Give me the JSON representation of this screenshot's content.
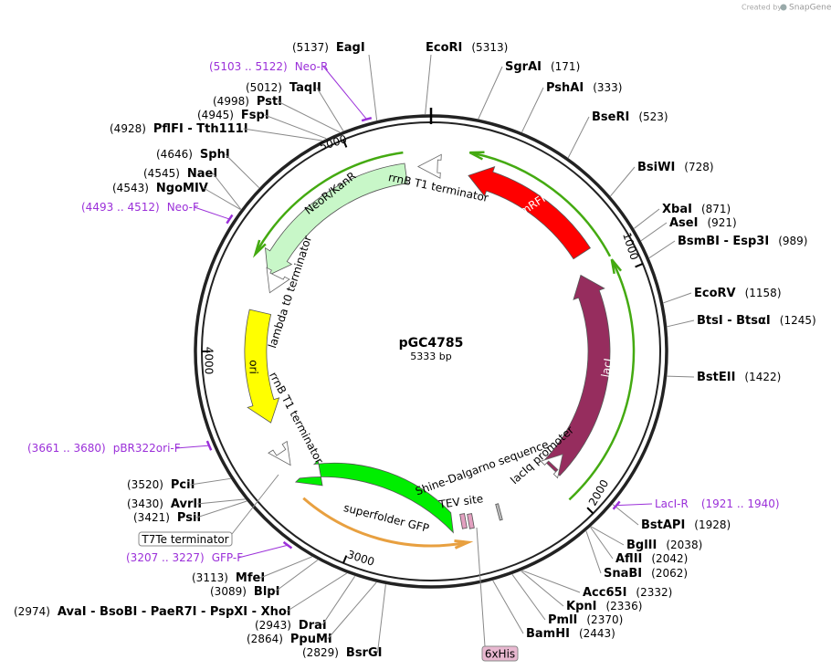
{
  "header": {
    "created_by": "Created by",
    "brand": "SnapGene"
  },
  "plasmid": {
    "name": "pGC4785",
    "size": "5333 bp"
  },
  "sites": [
    {
      "name": "EcoRI",
      "position": "(5313)"
    },
    {
      "name": "SgrAI",
      "position": "(171)"
    },
    {
      "name": "PshAI",
      "position": "(333)"
    },
    {
      "name": "BseRI",
      "position": "(523)"
    },
    {
      "name": "BsiWI",
      "position": "(728)"
    },
    {
      "name": "XbaI",
      "position": "(871)"
    },
    {
      "name": "AseI",
      "position": "(921)"
    },
    {
      "name": "BsmBI - Esp3I",
      "position": "(989)"
    },
    {
      "name": "EcoRV",
      "position": "(1158)"
    },
    {
      "name": "BtsI - BtsαI",
      "position": "(1245)"
    },
    {
      "name": "BstEII",
      "position": "(1422)"
    },
    {
      "name": "BstAPI",
      "position": "(1928)"
    },
    {
      "name": "BglII",
      "position": "(2038)"
    },
    {
      "name": "AflII",
      "position": "(2042)"
    },
    {
      "name": "SnaBI",
      "position": "(2062)"
    },
    {
      "name": "Acc65I",
      "position": "(2332)"
    },
    {
      "name": "KpnI",
      "position": "(2336)"
    },
    {
      "name": "PmlI",
      "position": "(2370)"
    },
    {
      "name": "BamHI",
      "position": "(2443)"
    },
    {
      "name": "BsrGI",
      "position": "(2829)"
    },
    {
      "name": "PpuMI",
      "position": "(2864)"
    },
    {
      "name": "DraI",
      "position": "(2943)"
    },
    {
      "name": "AvaI - BsoBI - PaeR7I - PspXI - XhoI",
      "position": "(2974)"
    },
    {
      "name": "BlpI",
      "position": "(3089)"
    },
    {
      "name": "MfeI",
      "position": "(3113)"
    },
    {
      "name": "PsiI",
      "position": "(3421)"
    },
    {
      "name": "AvrII",
      "position": "(3430)"
    },
    {
      "name": "PciI",
      "position": "(3520)"
    },
    {
      "name": "NgoMIV",
      "position": "(4543)"
    },
    {
      "name": "NaeI",
      "position": "(4545)"
    },
    {
      "name": "SphI",
      "position": "(4646)"
    },
    {
      "name": "PflFI - Tth111I",
      "position": "(4928)"
    },
    {
      "name": "FspI",
      "position": "(4945)"
    },
    {
      "name": "PstI",
      "position": "(4998)"
    },
    {
      "name": "TaqII",
      "position": "(5012)"
    },
    {
      "name": "EagI",
      "position": "(5137)"
    }
  ],
  "primers": [
    {
      "name": "Neo-R",
      "range": "(5103 .. 5122)"
    },
    {
      "name": "Neo-F",
      "range": "(4493 .. 4512)"
    },
    {
      "name": "pBR322ori-F",
      "range": "(3661 .. 3680)"
    },
    {
      "name": "GFP-F",
      "range": "(3207 .. 3227)"
    },
    {
      "name": "LacI-R",
      "range": "(1921 .. 1940)"
    }
  ],
  "features": [
    {
      "label": "mRFP1"
    },
    {
      "label": "lacI"
    },
    {
      "label": "NeoR/KanR"
    },
    {
      "label": "ori"
    },
    {
      "label": "superfolder GFP"
    },
    {
      "label": "rrnB T1 terminator"
    },
    {
      "label": "lambda t0 terminator"
    },
    {
      "label": "rrnB T1 terminator"
    },
    {
      "label": "lacIq promoter"
    },
    {
      "label": "Shine-Dalgarno sequence"
    },
    {
      "label": "TEV site"
    }
  ],
  "ticks": [
    "1000",
    "2000",
    "3000",
    "4000",
    "5000"
  ],
  "boxed_labels": [
    "T7Te terminator",
    "6xHis"
  ]
}
